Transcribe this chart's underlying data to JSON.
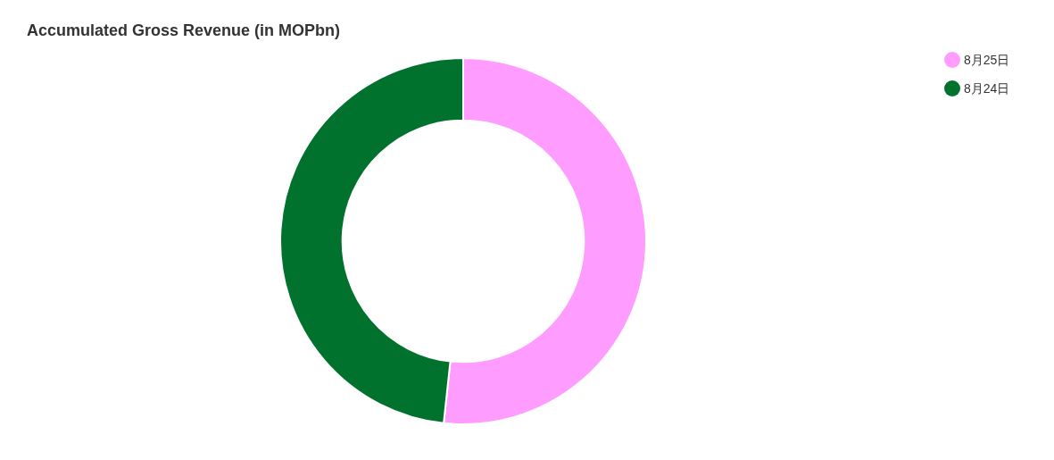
{
  "chart_data": {
    "type": "donut",
    "title": "Accumulated Gross Revenue (in MOPbn)",
    "categories": [
      "8月25日",
      "8月24日"
    ],
    "values": [
      51.7,
      48.3
    ],
    "colors": [
      "#ff9cff",
      "#00722e"
    ],
    "legend": "top right"
  }
}
